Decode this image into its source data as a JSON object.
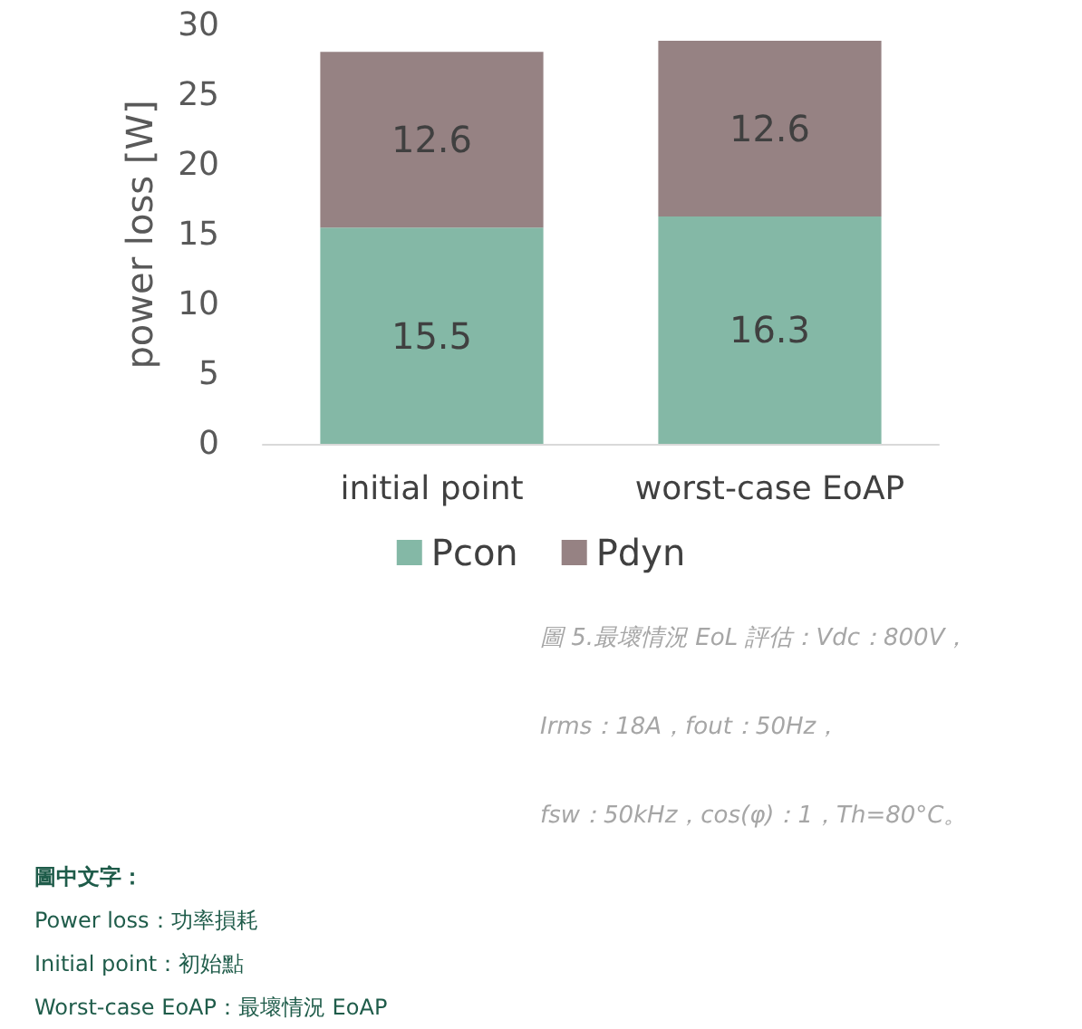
{
  "chart_data": {
    "type": "bar",
    "stacked": true,
    "ylabel": "power loss [W]",
    "categories": [
      "initial point",
      "worst-case EoAP"
    ],
    "series": [
      {
        "name": "Pcon",
        "color": "#84b8a6",
        "values": [
          15.5,
          16.3
        ]
      },
      {
        "name": "Pdyn",
        "color": "#968283",
        "values": [
          12.6,
          12.6
        ]
      }
    ],
    "ylim": [
      0,
      30
    ],
    "yticks": [
      0,
      5,
      10,
      15,
      20,
      25,
      30
    ],
    "grid": false,
    "legend": "bottom",
    "data_labels": true,
    "annotations": [
      "圖 5.最壞情況 EoL 評估：Vdc：800V，",
      "Irms：18A，fout：50Hz，",
      "fsw：50kHz，cos(φ)：1，Th=80°C。",
      "圖中文字：",
      "Power loss：功率損耗",
      "Initial point：初始點",
      "Worst-case EoAP：最壞情況 EoAP"
    ]
  }
}
